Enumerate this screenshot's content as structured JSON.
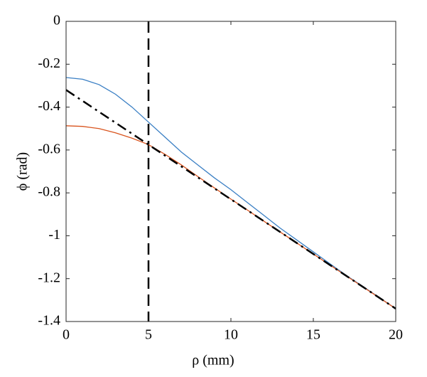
{
  "chart_data": {
    "type": "line",
    "x_label": "ρ (mm)",
    "y_label": "ϕ (rad)",
    "x": [
      0,
      1,
      2,
      3,
      4,
      5,
      6,
      7,
      8,
      9,
      10,
      11,
      12,
      13,
      14,
      15,
      16,
      17,
      18,
      19,
      20
    ],
    "series": [
      {
        "color": "#3a7fc4",
        "style": "solid",
        "values": [
          -0.262,
          -0.27,
          -0.295,
          -0.34,
          -0.4,
          -0.47,
          -0.54,
          -0.61,
          -0.67,
          -0.73,
          -0.785,
          -0.845,
          -0.905,
          -0.965,
          -1.02,
          -1.075,
          -1.13,
          -1.185,
          -1.236,
          -1.288,
          -1.34
        ]
      },
      {
        "color": "#d9541e",
        "style": "solid",
        "values": [
          -0.487,
          -0.49,
          -0.5,
          -0.52,
          -0.545,
          -0.575,
          -0.62,
          -0.67,
          -0.724,
          -0.777,
          -0.829,
          -0.88,
          -0.932,
          -0.983,
          -1.034,
          -1.085,
          -1.136,
          -1.187,
          -1.238,
          -1.289,
          -1.34
        ]
      },
      {
        "color": "#000000",
        "style": "dashdot",
        "values": [
          -0.32,
          -0.371,
          -0.422,
          -0.473,
          -0.524,
          -0.575,
          -0.626,
          -0.677,
          -0.728,
          -0.779,
          -0.83,
          -0.881,
          -0.932,
          -0.983,
          -1.034,
          -1.085,
          -1.136,
          -1.187,
          -1.238,
          -1.289,
          -1.34
        ]
      }
    ],
    "reference_lines": [
      {
        "x": 5,
        "color": "#000000",
        "style": "dashed"
      }
    ],
    "xlim": [
      0,
      20
    ],
    "ylim": [
      -1.4,
      0
    ],
    "xticks": [
      0,
      5,
      10,
      15,
      20
    ],
    "yticks": [
      0,
      -0.2,
      -0.4,
      -0.6,
      -0.8,
      -1,
      -1.2,
      -1.4
    ],
    "grid": false
  }
}
